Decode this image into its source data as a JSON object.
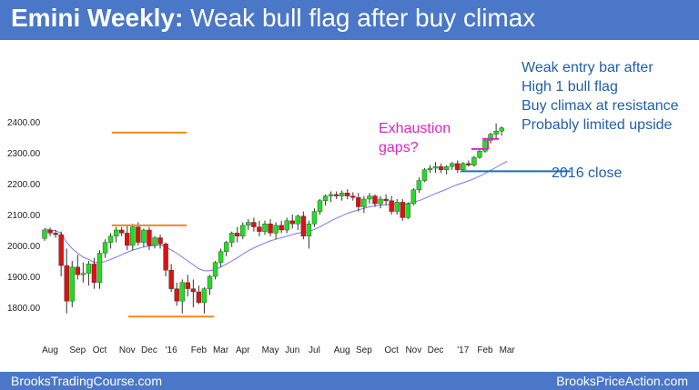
{
  "header": {
    "title_bold": "Emini Weekly:",
    "title_rest": " Weak bull flag after buy climax"
  },
  "footer": {
    "left": "BrooksTradingCourse.com",
    "right": "BrooksPriceAction.com"
  },
  "annotations": {
    "blue_lines": [
      "Weak entry bar after",
      "High 1 bull flag",
      "Buy climax at resistance",
      "Probably limited upside"
    ],
    "magenta_lines": [
      "Exhaustion",
      "gaps?"
    ],
    "close_label": "2016 close"
  },
  "colors": {
    "header_bg": "#4a77c7",
    "bull": "#22dd22",
    "bear": "#dd1111",
    "ma": "#7777ee",
    "blue_text": "#1f5fa8",
    "magenta": "#dd22cc",
    "orange": "#f08a1e",
    "close_line": "#1f6fb5"
  },
  "chart_data": {
    "type": "candlestick",
    "title": "",
    "ylim": [
      1760,
      2420
    ],
    "yticks": [
      1800,
      1900,
      2000,
      2100,
      2200,
      2300,
      2400
    ],
    "ytick_labels": [
      "1800.00",
      "1900.00",
      "2000.00",
      "2100.00",
      "2200.00",
      "2300.00",
      "2400.00"
    ],
    "xtick_labels": [
      "Aug",
      "Sep",
      "Oct",
      "Nov",
      "Dec",
      "'16",
      "Feb",
      "Mar",
      "Apr",
      "May",
      "Jun",
      "Jul",
      "Aug",
      "Sep",
      "Oct",
      "Nov",
      "Dec",
      "'17",
      "Feb",
      "Mar"
    ],
    "xtick_index": [
      1,
      6,
      10,
      15,
      19,
      23,
      28,
      32,
      36,
      41,
      45,
      49,
      54,
      58,
      63,
      67,
      71,
      76,
      80,
      84
    ],
    "candles": [
      [
        2023,
        2055,
        2015,
        2050
      ],
      [
        2050,
        2058,
        2030,
        2040
      ],
      [
        2040,
        2050,
        2025,
        2035
      ],
      [
        2035,
        2045,
        1900,
        1935
      ],
      [
        1935,
        1990,
        1780,
        1820
      ],
      [
        1820,
        1950,
        1800,
        1930
      ],
      [
        1930,
        1970,
        1890,
        1905
      ],
      [
        1905,
        1945,
        1880,
        1910
      ],
      [
        1910,
        1950,
        1870,
        1940
      ],
      [
        1940,
        1960,
        1860,
        1880
      ],
      [
        1880,
        1985,
        1860,
        1975
      ],
      [
        1975,
        2020,
        1960,
        2010
      ],
      [
        2010,
        2040,
        1990,
        2030
      ],
      [
        2030,
        2060,
        2010,
        2050
      ],
      [
        2050,
        2060,
        2030,
        2040
      ],
      [
        2040,
        2065,
        1985,
        2000
      ],
      [
        2000,
        2070,
        1985,
        2060
      ],
      [
        2060,
        2075,
        2000,
        2010
      ],
      [
        2010,
        2055,
        1995,
        2050
      ],
      [
        2050,
        2060,
        1985,
        2000
      ],
      [
        2000,
        2030,
        1990,
        2025
      ],
      [
        2025,
        2035,
        1990,
        2005
      ],
      [
        2005,
        2010,
        1900,
        1920
      ],
      [
        1920,
        1940,
        1850,
        1860
      ],
      [
        1860,
        1880,
        1805,
        1820
      ],
      [
        1820,
        1890,
        1780,
        1880
      ],
      [
        1880,
        1905,
        1835,
        1860
      ],
      [
        1860,
        1890,
        1800,
        1850
      ],
      [
        1850,
        1870,
        1810,
        1815
      ],
      [
        1815,
        1865,
        1780,
        1860
      ],
      [
        1860,
        1905,
        1840,
        1900
      ],
      [
        1900,
        1950,
        1890,
        1945
      ],
      [
        1945,
        1990,
        1930,
        1980
      ],
      [
        1980,
        2015,
        1965,
        2010
      ],
      [
        2010,
        2045,
        1995,
        2040
      ],
      [
        2040,
        2060,
        2010,
        2030
      ],
      [
        2030,
        2075,
        2020,
        2065
      ],
      [
        2065,
        2085,
        2050,
        2075
      ],
      [
        2075,
        2090,
        2045,
        2060
      ],
      [
        2060,
        2080,
        2030,
        2045
      ],
      [
        2045,
        2080,
        2035,
        2070
      ],
      [
        2070,
        2085,
        2030,
        2040
      ],
      [
        2040,
        2075,
        2020,
        2065
      ],
      [
        2065,
        2080,
        2040,
        2050
      ],
      [
        2050,
        2090,
        2040,
        2080
      ],
      [
        2080,
        2100,
        2055,
        2070
      ],
      [
        2070,
        2100,
        2050,
        2095
      ],
      [
        2095,
        2110,
        2020,
        2030
      ],
      [
        2030,
        2080,
        1990,
        2070
      ],
      [
        2070,
        2120,
        2060,
        2110
      ],
      [
        2110,
        2150,
        2100,
        2145
      ],
      [
        2145,
        2165,
        2130,
        2160
      ],
      [
        2160,
        2175,
        2140,
        2165
      ],
      [
        2165,
        2175,
        2150,
        2160
      ],
      [
        2160,
        2178,
        2145,
        2170
      ],
      [
        2170,
        2182,
        2150,
        2160
      ],
      [
        2160,
        2172,
        2145,
        2155
      ],
      [
        2155,
        2170,
        2110,
        2125
      ],
      [
        2125,
        2160,
        2105,
        2150
      ],
      [
        2150,
        2170,
        2135,
        2160
      ],
      [
        2160,
        2165,
        2125,
        2135
      ],
      [
        2135,
        2160,
        2120,
        2150
      ],
      [
        2150,
        2165,
        2130,
        2145
      ],
      [
        2145,
        2160,
        2100,
        2110
      ],
      [
        2110,
        2150,
        2100,
        2140
      ],
      [
        2140,
        2150,
        2080,
        2090
      ],
      [
        2090,
        2140,
        2085,
        2135
      ],
      [
        2135,
        2185,
        2130,
        2180
      ],
      [
        2180,
        2220,
        2170,
        2210
      ],
      [
        2210,
        2250,
        2205,
        2245
      ],
      [
        2245,
        2260,
        2235,
        2250
      ],
      [
        2250,
        2270,
        2235,
        2255
      ],
      [
        2255,
        2265,
        2235,
        2245
      ],
      [
        2245,
        2260,
        2230,
        2255
      ],
      [
        2255,
        2270,
        2245,
        2265
      ],
      [
        2265,
        2275,
        2235,
        2245
      ],
      [
        2245,
        2270,
        2240,
        2265
      ],
      [
        2265,
        2275,
        2255,
        2260
      ],
      [
        2260,
        2290,
        2255,
        2285
      ],
      [
        2285,
        2310,
        2280,
        2305
      ],
      [
        2305,
        2345,
        2300,
        2340
      ],
      [
        2340,
        2365,
        2330,
        2360
      ],
      [
        2360,
        2395,
        2345,
        2370
      ],
      [
        2370,
        2385,
        2355,
        2380
      ]
    ],
    "ma": [
      2055,
      2050,
      2048,
      2040,
      2010,
      1990,
      1975,
      1962,
      1955,
      1945,
      1945,
      1948,
      1955,
      1962,
      1970,
      1978,
      1985,
      1990,
      1995,
      1998,
      2000,
      2002,
      1995,
      1985,
      1975,
      1962,
      1950,
      1938,
      1925,
      1918,
      1918,
      1922,
      1930,
      1940,
      1950,
      1960,
      1972,
      1983,
      1992,
      2000,
      2008,
      2015,
      2020,
      2025,
      2030,
      2035,
      2040,
      2042,
      2045,
      2052,
      2060,
      2070,
      2080,
      2088,
      2096,
      2104,
      2110,
      2115,
      2120,
      2125,
      2128,
      2130,
      2132,
      2132,
      2133,
      2133,
      2136,
      2140,
      2145,
      2152,
      2160,
      2168,
      2175,
      2182,
      2190,
      2197,
      2203,
      2209,
      2216,
      2224,
      2233,
      2243,
      2253,
      2263,
      2272
    ],
    "lines": [
      {
        "color": "orange",
        "y": 2365,
        "x_from": 12.2,
        "x_to": 25.8
      },
      {
        "color": "orange",
        "y": 2065,
        "x_from": 12.2,
        "x_to": 25.8
      },
      {
        "color": "orange",
        "y": 1770,
        "x_from": 15.2,
        "x_to": 30.8
      },
      {
        "color": "magenta",
        "y": 2345,
        "x_from": 79.5,
        "x_to": 82.5
      },
      {
        "color": "magenta",
        "y": 2312,
        "x_from": 77.5,
        "x_to": 80.5
      },
      {
        "color": "close_line",
        "y": 2240,
        "x_from": 75.5,
        "x_to": 95.5
      }
    ],
    "markers": [
      {
        "color": "magenta",
        "x": 80.5,
        "y_from": 2310,
        "y_to": 2345
      }
    ]
  }
}
